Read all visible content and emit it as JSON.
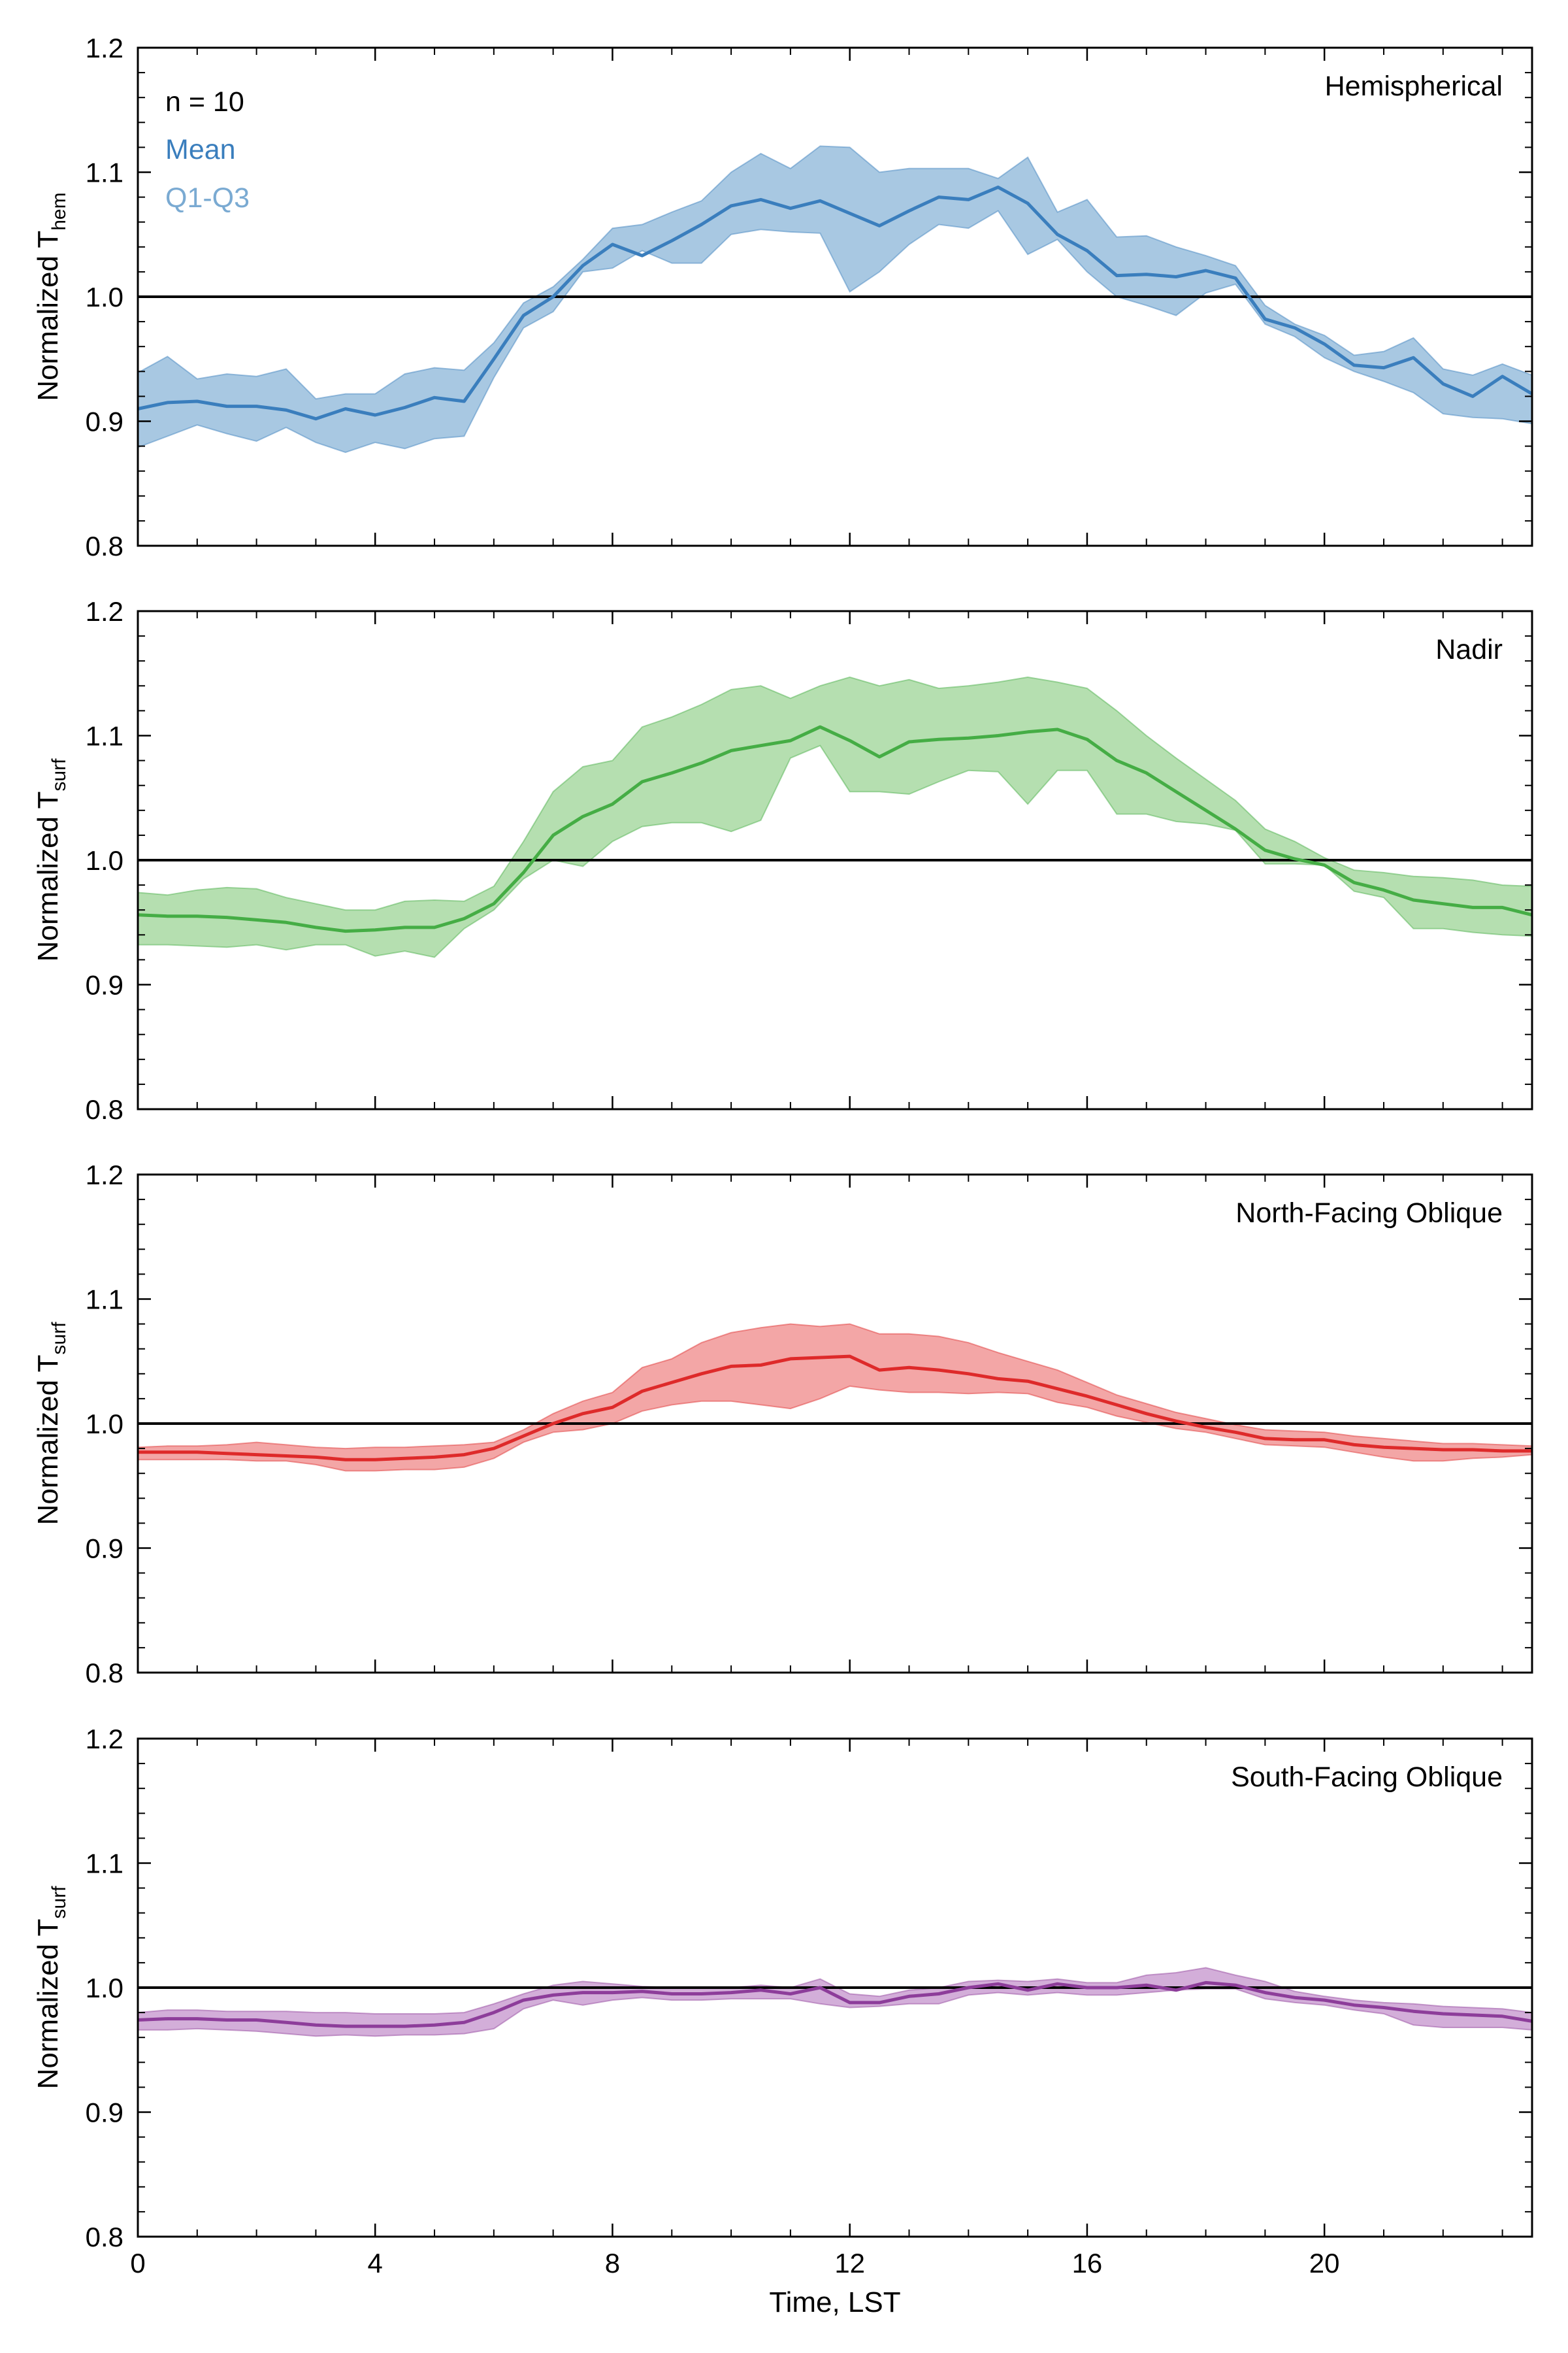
{
  "chart_data": [
    {
      "type": "area",
      "panel_label": "Hemispherical",
      "ylabel": "Normalized T",
      "ylabel_sub": "hem",
      "annotation": {
        "n_text": "n = 10",
        "mean_text": "Mean",
        "q_text": "Q1-Q3"
      },
      "color": "#3a7ebd",
      "fill": "#a8c8e2",
      "xlim": [
        0,
        23.5
      ],
      "ylim": [
        0.8,
        1.2
      ],
      "x": [
        0,
        0.5,
        1,
        1.5,
        2,
        2.5,
        3,
        3.5,
        4,
        4.5,
        5,
        5.5,
        6,
        6.5,
        7,
        7.5,
        8,
        8.5,
        9,
        9.5,
        10,
        10.5,
        11,
        11.5,
        12,
        12.5,
        13,
        13.5,
        14,
        14.5,
        15,
        15.5,
        16,
        16.5,
        17,
        17.5,
        18,
        18.5,
        19,
        19.5,
        20,
        20.5,
        21,
        21.5,
        22,
        22.5,
        23,
        23.5
      ],
      "series": [
        {
          "role": "mean",
          "values": [
            0.91,
            0.915,
            0.916,
            0.912,
            0.912,
            0.909,
            0.902,
            0.91,
            0.905,
            0.911,
            0.919,
            0.916,
            0.95,
            0.985,
            1.0,
            1.025,
            1.042,
            1.033,
            1.045,
            1.058,
            1.073,
            1.078,
            1.071,
            1.077,
            1.067,
            1.057,
            1.069,
            1.08,
            1.078,
            1.088,
            1.075,
            1.05,
            1.037,
            1.017,
            1.018,
            1.016,
            1.021,
            1.015,
            0.982,
            0.975,
            0.962,
            0.945,
            0.943,
            0.951,
            0.93,
            0.92,
            0.936,
            0.922
          ]
        },
        {
          "role": "q3",
          "values": [
            0.939,
            0.952,
            0.934,
            0.938,
            0.936,
            0.942,
            0.918,
            0.922,
            0.922,
            0.938,
            0.943,
            0.941,
            0.963,
            0.995,
            1.008,
            1.03,
            1.055,
            1.058,
            1.068,
            1.077,
            1.1,
            1.115,
            1.103,
            1.121,
            1.12,
            1.1,
            1.103,
            1.103,
            1.103,
            1.095,
            1.112,
            1.068,
            1.078,
            1.048,
            1.049,
            1.04,
            1.033,
            1.025,
            0.993,
            0.978,
            0.969,
            0.953,
            0.956,
            0.967,
            0.942,
            0.937,
            0.946,
            0.937
          ]
        },
        {
          "role": "q1",
          "values": [
            0.879,
            0.888,
            0.897,
            0.89,
            0.884,
            0.895,
            0.883,
            0.875,
            0.883,
            0.878,
            0.886,
            0.888,
            0.935,
            0.975,
            0.988,
            1.02,
            1.023,
            1.037,
            1.027,
            1.027,
            1.05,
            1.054,
            1.052,
            1.051,
            1.004,
            1.02,
            1.042,
            1.058,
            1.055,
            1.069,
            1.034,
            1.046,
            1.02,
            1.0,
            0.993,
            0.985,
            1.003,
            1.01,
            0.978,
            0.968,
            0.951,
            0.94,
            0.932,
            0.923,
            0.906,
            0.903,
            0.902,
            0.898
          ]
        }
      ]
    },
    {
      "type": "area",
      "panel_label": "Nadir",
      "ylabel": "Normalized T",
      "ylabel_sub": "surf",
      "color": "#45ad45",
      "fill": "#b5dfb0",
      "xlim": [
        0,
        23.5
      ],
      "ylim": [
        0.8,
        1.2
      ],
      "x": [
        0,
        0.5,
        1,
        1.5,
        2,
        2.5,
        3,
        3.5,
        4,
        4.5,
        5,
        5.5,
        6,
        6.5,
        7,
        7.5,
        8,
        8.5,
        9,
        9.5,
        10,
        10.5,
        11,
        11.5,
        12,
        12.5,
        13,
        13.5,
        14,
        14.5,
        15,
        15.5,
        16,
        16.5,
        17,
        17.5,
        18,
        18.5,
        19,
        19.5,
        20,
        20.5,
        21,
        21.5,
        22,
        22.5,
        23,
        23.5
      ],
      "series": [
        {
          "role": "mean",
          "values": [
            0.956,
            0.955,
            0.955,
            0.954,
            0.952,
            0.95,
            0.946,
            0.943,
            0.944,
            0.946,
            0.946,
            0.953,
            0.965,
            0.99,
            1.02,
            1.035,
            1.045,
            1.063,
            1.07,
            1.078,
            1.088,
            1.092,
            1.096,
            1.107,
            1.096,
            1.083,
            1.095,
            1.097,
            1.098,
            1.1,
            1.103,
            1.105,
            1.097,
            1.08,
            1.07,
            1.055,
            1.04,
            1.025,
            1.008,
            1.001,
            0.996,
            0.982,
            0.976,
            0.968,
            0.965,
            0.962,
            0.962,
            0.956
          ]
        },
        {
          "role": "q3",
          "values": [
            0.974,
            0.972,
            0.976,
            0.978,
            0.977,
            0.97,
            0.965,
            0.96,
            0.96,
            0.967,
            0.968,
            0.967,
            0.979,
            1.015,
            1.055,
            1.075,
            1.08,
            1.107,
            1.115,
            1.125,
            1.137,
            1.14,
            1.13,
            1.14,
            1.147,
            1.14,
            1.145,
            1.138,
            1.14,
            1.143,
            1.147,
            1.143,
            1.138,
            1.12,
            1.1,
            1.082,
            1.065,
            1.048,
            1.025,
            1.015,
            1.002,
            0.992,
            0.99,
            0.987,
            0.986,
            0.984,
            0.98,
            0.979
          ]
        },
        {
          "role": "q1",
          "values": [
            0.932,
            0.932,
            0.931,
            0.93,
            0.932,
            0.928,
            0.932,
            0.932,
            0.923,
            0.927,
            0.922,
            0.945,
            0.96,
            0.985,
            1.0,
            0.995,
            1.015,
            1.027,
            1.03,
            1.03,
            1.023,
            1.032,
            1.082,
            1.092,
            1.055,
            1.055,
            1.053,
            1.063,
            1.072,
            1.071,
            1.045,
            1.072,
            1.072,
            1.037,
            1.037,
            1.031,
            1.029,
            1.024,
            0.997,
            0.997,
            0.996,
            0.975,
            0.97,
            0.945,
            0.945,
            0.942,
            0.94,
            0.939
          ]
        }
      ]
    },
    {
      "type": "area",
      "panel_label": "North-Facing Oblique",
      "ylabel": "Normalized T",
      "ylabel_sub": "surf",
      "color": "#de2a2a",
      "fill": "#f3a6a6",
      "xlim": [
        0,
        23.5
      ],
      "ylim": [
        0.8,
        1.2
      ],
      "x": [
        0,
        0.5,
        1,
        1.5,
        2,
        2.5,
        3,
        3.5,
        4,
        4.5,
        5,
        5.5,
        6,
        6.5,
        7,
        7.5,
        8,
        8.5,
        9,
        9.5,
        10,
        10.5,
        11,
        11.5,
        12,
        12.5,
        13,
        13.5,
        14,
        14.5,
        15,
        15.5,
        16,
        16.5,
        17,
        17.5,
        18,
        18.5,
        19,
        19.5,
        20,
        20.5,
        21,
        21.5,
        22,
        22.5,
        23,
        23.5
      ],
      "series": [
        {
          "role": "mean",
          "values": [
            0.977,
            0.977,
            0.977,
            0.976,
            0.975,
            0.974,
            0.973,
            0.971,
            0.971,
            0.972,
            0.973,
            0.975,
            0.98,
            0.99,
            1.0,
            1.008,
            1.013,
            1.026,
            1.033,
            1.04,
            1.046,
            1.047,
            1.052,
            1.053,
            1.054,
            1.043,
            1.045,
            1.043,
            1.04,
            1.036,
            1.034,
            1.028,
            1.022,
            1.015,
            1.008,
            1.002,
            0.997,
            0.993,
            0.988,
            0.987,
            0.987,
            0.983,
            0.981,
            0.98,
            0.979,
            0.979,
            0.978,
            0.978
          ]
        },
        {
          "role": "q3",
          "values": [
            0.981,
            0.982,
            0.982,
            0.983,
            0.985,
            0.983,
            0.981,
            0.98,
            0.981,
            0.981,
            0.982,
            0.983,
            0.985,
            0.995,
            1.008,
            1.018,
            1.025,
            1.045,
            1.052,
            1.065,
            1.073,
            1.077,
            1.08,
            1.078,
            1.08,
            1.072,
            1.072,
            1.07,
            1.065,
            1.057,
            1.05,
            1.043,
            1.033,
            1.023,
            1.016,
            1.009,
            1.004,
            0.999,
            0.995,
            0.994,
            0.993,
            0.99,
            0.988,
            0.986,
            0.984,
            0.984,
            0.983,
            0.982
          ]
        },
        {
          "role": "q1",
          "values": [
            0.971,
            0.971,
            0.971,
            0.971,
            0.97,
            0.97,
            0.967,
            0.962,
            0.962,
            0.963,
            0.963,
            0.965,
            0.972,
            0.985,
            0.993,
            0.995,
            1.0,
            1.01,
            1.015,
            1.018,
            1.018,
            1.015,
            1.012,
            1.02,
            1.03,
            1.027,
            1.025,
            1.025,
            1.024,
            1.025,
            1.024,
            1.017,
            1.013,
            1.006,
            1.001,
            0.996,
            0.993,
            0.988,
            0.983,
            0.982,
            0.981,
            0.977,
            0.973,
            0.97,
            0.97,
            0.972,
            0.973,
            0.975
          ]
        }
      ]
    },
    {
      "type": "area",
      "panel_label": "South-Facing Oblique",
      "ylabel": "Normalized T",
      "ylabel_sub": "surf",
      "xlabel": "Time, LST",
      "color": "#8d3d9a",
      "fill": "#d3aed9",
      "xlim": [
        0,
        23.5
      ],
      "ylim": [
        0.8,
        1.2
      ],
      "xticks": [
        0,
        4,
        8,
        12,
        16,
        20
      ],
      "x": [
        0,
        0.5,
        1,
        1.5,
        2,
        2.5,
        3,
        3.5,
        4,
        4.5,
        5,
        5.5,
        6,
        6.5,
        7,
        7.5,
        8,
        8.5,
        9,
        9.5,
        10,
        10.5,
        11,
        11.5,
        12,
        12.5,
        13,
        13.5,
        14,
        14.5,
        15,
        15.5,
        16,
        16.5,
        17,
        17.5,
        18,
        18.5,
        19,
        19.5,
        20,
        20.5,
        21,
        21.5,
        22,
        22.5,
        23,
        23.5
      ],
      "series": [
        {
          "role": "mean",
          "values": [
            0.974,
            0.975,
            0.975,
            0.974,
            0.974,
            0.972,
            0.97,
            0.969,
            0.969,
            0.969,
            0.97,
            0.972,
            0.98,
            0.99,
            0.994,
            0.996,
            0.996,
            0.997,
            0.995,
            0.995,
            0.996,
            0.998,
            0.995,
            1.0,
            0.988,
            0.988,
            0.993,
            0.995,
            1.0,
            1.003,
            0.998,
            1.003,
            1.0,
            1.0,
            1.002,
            0.998,
            1.004,
            1.002,
            0.996,
            0.992,
            0.99,
            0.986,
            0.984,
            0.981,
            0.979,
            0.978,
            0.977,
            0.973
          ]
        },
        {
          "role": "q3",
          "values": [
            0.98,
            0.982,
            0.982,
            0.981,
            0.981,
            0.981,
            0.98,
            0.98,
            0.979,
            0.979,
            0.979,
            0.98,
            0.987,
            0.995,
            1.002,
            1.005,
            1.003,
            1.001,
            1.0,
            1.0,
            1.0,
            1.002,
            1.0,
            1.007,
            0.995,
            0.993,
            0.998,
            1.0,
            1.005,
            1.006,
            1.005,
            1.007,
            1.004,
            1.004,
            1.01,
            1.012,
            1.016,
            1.01,
            1.005,
            0.997,
            0.993,
            0.99,
            0.988,
            0.987,
            0.985,
            0.984,
            0.983,
            0.98
          ]
        },
        {
          "role": "q1",
          "values": [
            0.966,
            0.966,
            0.967,
            0.966,
            0.965,
            0.963,
            0.961,
            0.962,
            0.961,
            0.962,
            0.962,
            0.963,
            0.967,
            0.983,
            0.99,
            0.986,
            0.99,
            0.992,
            0.99,
            0.99,
            0.991,
            0.991,
            0.991,
            0.987,
            0.984,
            0.985,
            0.987,
            0.987,
            0.994,
            0.996,
            0.994,
            0.996,
            0.994,
            0.994,
            0.996,
            0.998,
            0.999,
            0.999,
            0.991,
            0.988,
            0.986,
            0.982,
            0.979,
            0.97,
            0.968,
            0.968,
            0.968,
            0.966
          ]
        }
      ]
    }
  ]
}
